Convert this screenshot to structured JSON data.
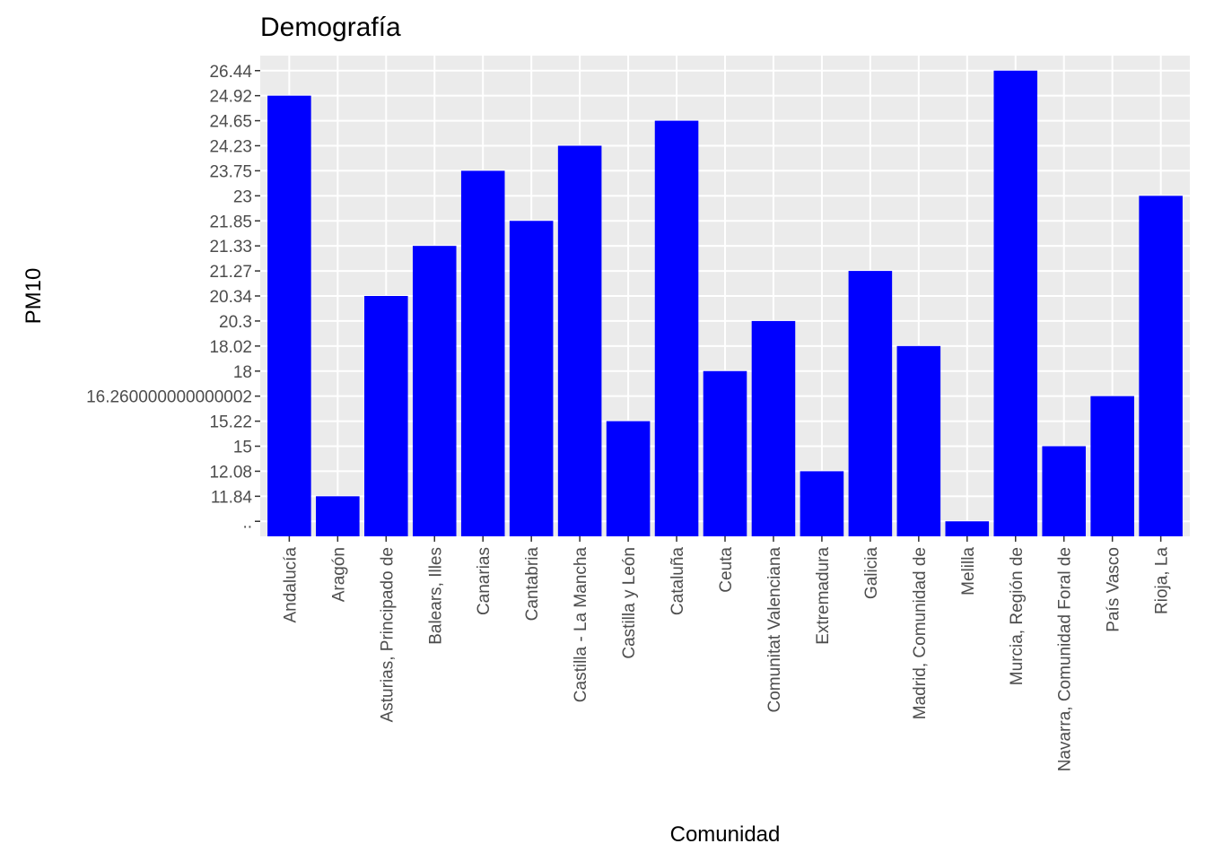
{
  "chart_data": {
    "type": "bar",
    "title": "Demografía",
    "xlabel": "Comunidad",
    "ylabel": "PM10",
    "y_scale": "categorical",
    "y_levels": [
      "..",
      "11.84",
      "12.08",
      "15",
      "15.22",
      "16.260000000000002",
      "18",
      "18.02",
      "20.3",
      "20.34",
      "21.27",
      "21.33",
      "21.85",
      "23",
      "23.75",
      "24.23",
      "24.65",
      "24.92",
      "26.44"
    ],
    "categories": [
      "Andalucía",
      "Aragón",
      "Asturias, Principado de",
      "Balears, Illes",
      "Canarias",
      "Cantabria",
      "Castilla - La Mancha",
      "Castilla y León",
      "Cataluña",
      "Ceuta",
      "Comunitat Valenciana",
      "Extremadura",
      "Galicia",
      "Madrid, Comunidad de",
      "Melilla",
      "Murcia, Región de",
      "Navarra, Comunidad Foral de",
      "País Vasco",
      "Rioja, La"
    ],
    "values": [
      "24.92",
      "11.84",
      "20.34",
      "21.33",
      "23.75",
      "21.85",
      "24.23",
      "15.22",
      "24.65",
      "18",
      "20.3",
      "12.08",
      "21.27",
      "18.02",
      "..",
      "26.44",
      "15",
      "16.260000000000002",
      "23"
    ],
    "bar_color": "#0000ff",
    "panel_color": "#ebebeb",
    "grid_color": "#ffffff",
    "grid": true,
    "legend": "none"
  }
}
